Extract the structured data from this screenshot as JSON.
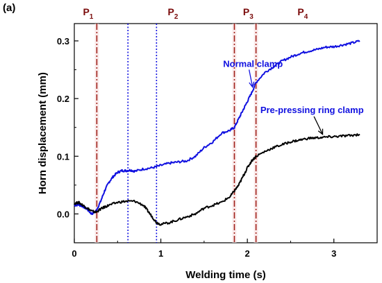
{
  "panel_label": "(a)",
  "chart_data": {
    "type": "line",
    "title": "",
    "xlabel": "Welding time (s)",
    "ylabel": "Horn displacement (mm)",
    "xlim": [
      0,
      3.5
    ],
    "ylim": [
      -0.05,
      0.33
    ],
    "x_ticks": [
      0,
      1,
      2,
      3
    ],
    "x_tick_labels": [
      "0",
      "1",
      "2",
      "3"
    ],
    "y_ticks": [
      0.0,
      0.1,
      0.2,
      0.3
    ],
    "y_tick_labels": [
      "0.0",
      "0.1",
      "0.2",
      "0.3"
    ],
    "grid": false,
    "legend": "none",
    "series": [
      {
        "name": "Normal clamp",
        "color": "#1010e0",
        "x": [
          0,
          0.05,
          0.1,
          0.15,
          0.2,
          0.25,
          0.3,
          0.35,
          0.4,
          0.45,
          0.5,
          0.55,
          0.6,
          0.65,
          0.7,
          0.8,
          0.9,
          1.0,
          1.1,
          1.2,
          1.3,
          1.4,
          1.5,
          1.6,
          1.7,
          1.8,
          1.85,
          1.9,
          1.95,
          2.0,
          2.05,
          2.1,
          2.2,
          2.3,
          2.4,
          2.5,
          2.6,
          2.7,
          2.8,
          2.9,
          3.0,
          3.1,
          3.2,
          3.3
        ],
        "y": [
          0.015,
          0.016,
          0.013,
          0.008,
          0.0,
          0.005,
          0.02,
          0.04,
          0.055,
          0.065,
          0.072,
          0.075,
          0.075,
          0.076,
          0.074,
          0.078,
          0.08,
          0.084,
          0.088,
          0.09,
          0.092,
          0.1,
          0.115,
          0.125,
          0.14,
          0.145,
          0.15,
          0.165,
          0.18,
          0.195,
          0.21,
          0.228,
          0.245,
          0.255,
          0.265,
          0.272,
          0.278,
          0.282,
          0.285,
          0.289,
          0.29,
          0.293,
          0.296,
          0.3
        ]
      },
      {
        "name": "Pre-pressing ring clamp",
        "color": "#000000",
        "x": [
          0,
          0.05,
          0.1,
          0.15,
          0.2,
          0.25,
          0.3,
          0.35,
          0.4,
          0.5,
          0.6,
          0.7,
          0.8,
          0.85,
          0.9,
          0.95,
          1.0,
          1.1,
          1.2,
          1.3,
          1.4,
          1.5,
          1.6,
          1.7,
          1.8,
          1.85,
          1.9,
          1.95,
          2.0,
          2.05,
          2.1,
          2.2,
          2.3,
          2.4,
          2.5,
          2.6,
          2.7,
          2.8,
          2.9,
          3.0,
          3.1,
          3.2,
          3.3
        ],
        "y": [
          0.018,
          0.02,
          0.015,
          0.01,
          0.005,
          0.003,
          0.008,
          0.012,
          0.015,
          0.02,
          0.022,
          0.022,
          0.015,
          0.005,
          -0.005,
          -0.015,
          -0.018,
          -0.015,
          -0.01,
          -0.005,
          0.0,
          0.01,
          0.015,
          0.02,
          0.03,
          0.04,
          0.05,
          0.065,
          0.08,
          0.092,
          0.1,
          0.108,
          0.115,
          0.12,
          0.125,
          0.128,
          0.131,
          0.132,
          0.133,
          0.134,
          0.135,
          0.136,
          0.138
        ]
      }
    ],
    "vertical_lines": [
      {
        "x": 0.26,
        "style": "dashdot",
        "color": "#a0201a"
      },
      {
        "x": 0.62,
        "style": "dotted",
        "color": "#1010e0"
      },
      {
        "x": 0.95,
        "style": "dotted",
        "color": "#1010e0"
      },
      {
        "x": 1.85,
        "style": "dashdot",
        "color": "#a0201a"
      },
      {
        "x": 2.1,
        "style": "dashdot",
        "color": "#a0201a"
      }
    ],
    "period_labels": [
      {
        "text": "P",
        "sub": "1",
        "x": 0.1
      },
      {
        "text": "P",
        "sub": "2",
        "x": 1.08
      },
      {
        "text": "P",
        "sub": "3",
        "x": 1.95
      },
      {
        "text": "P",
        "sub": "4",
        "x": 2.58
      }
    ],
    "annotations": [
      {
        "text": "Normal clamp",
        "color": "#1010e0",
        "text_x": 1.72,
        "text_y": 0.255,
        "arrow_to_x": 2.06,
        "arrow_to_y": 0.22
      },
      {
        "text": "Pre-pressing ring clamp",
        "color": "#1010e0",
        "text_x": 2.15,
        "text_y": 0.175,
        "arrow_to_x": 2.87,
        "arrow_to_y": 0.138
      }
    ]
  }
}
